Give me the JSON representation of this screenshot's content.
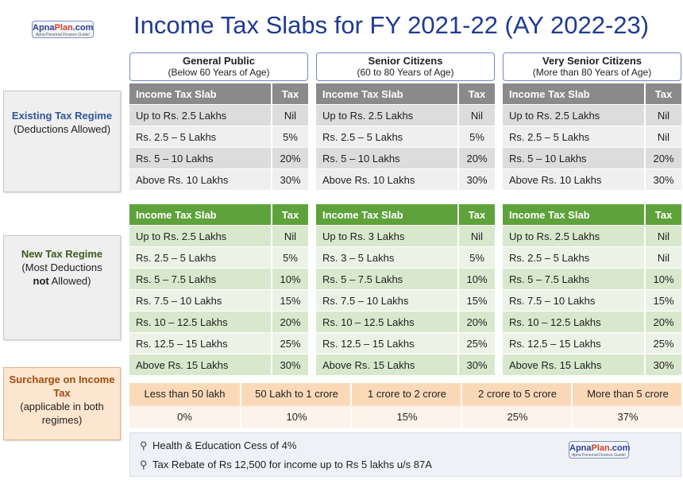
{
  "brand": {
    "name_prefix": "Apna",
    "name_highlight": "Plan",
    "name_suffix": ".com",
    "tagline": "Apna Personal Finance Guide!"
  },
  "title": "Income Tax Slabs for FY 2021-22 (AY 2022-23)",
  "groups": [
    {
      "name": "General Public",
      "sub": "(Below 60 Years of Age)"
    },
    {
      "name": "Senior Citizens",
      "sub": "(60 to 80 Years of Age)"
    },
    {
      "name": "Very Senior Citizens",
      "sub": "(More than 80 Years of Age)"
    }
  ],
  "col_slab": "Income Tax Slab",
  "col_tax": "Tax",
  "existing": {
    "label_bold": "Existing Tax Regime",
    "label_rest": "(Deductions Allowed)",
    "tables": [
      [
        [
          "Up to Rs. 2.5 Lakhs",
          "Nil"
        ],
        [
          "Rs. 2.5 – 5 Lakhs",
          "5%"
        ],
        [
          "Rs. 5 – 10 Lakhs",
          "20%"
        ],
        [
          "Above Rs. 10 Lakhs",
          "30%"
        ]
      ],
      [
        [
          "Up to Rs. 2.5 Lakhs",
          "Nil"
        ],
        [
          "Rs. 2.5 – 5 Lakhs",
          "5%"
        ],
        [
          "Rs. 5 – 10 Lakhs",
          "20%"
        ],
        [
          "Above Rs. 10 Lakhs",
          "30%"
        ]
      ],
      [
        [
          "Up to Rs. 2.5 Lakhs",
          "Nil"
        ],
        [
          "Rs. 2.5 – 5 Lakhs",
          "Nil"
        ],
        [
          "Rs. 5 – 10 Lakhs",
          "20%"
        ],
        [
          "Above Rs. 10 Lakhs",
          "30%"
        ]
      ]
    ]
  },
  "new_regime": {
    "label_bold": "New Tax Regime",
    "label_rest_1": "(Most Deductions",
    "label_not": "not",
    "label_rest_2": "Allowed)",
    "tables": [
      [
        [
          "Up to Rs. 2.5 Lakhs",
          "Nil"
        ],
        [
          "Rs. 2.5 – 5 Lakhs",
          "5%"
        ],
        [
          "Rs. 5 – 7.5 Lakhs",
          "10%"
        ],
        [
          "Rs. 7.5 – 10 Lakhs",
          "15%"
        ],
        [
          "Rs. 10 – 12.5 Lakhs",
          "20%"
        ],
        [
          "Rs. 12.5 – 15 Lakhs",
          "25%"
        ],
        [
          "Above Rs. 15 Lakhs",
          "30%"
        ]
      ],
      [
        [
          "Up to Rs. 3 Lakhs",
          "Nil"
        ],
        [
          "Rs. 3 – 5 Lakhs",
          "5%"
        ],
        [
          "Rs. 5 – 7.5 Lakhs",
          "10%"
        ],
        [
          "Rs. 7.5 – 10 Lakhs",
          "15%"
        ],
        [
          "Rs. 10 – 12.5 Lakhs",
          "20%"
        ],
        [
          "Rs. 12.5 – 15 Lakhs",
          "25%"
        ],
        [
          "Above Rs. 15 Lakhs",
          "30%"
        ]
      ],
      [
        [
          "Up to Rs. 2.5 Lakhs",
          "Nil"
        ],
        [
          "Rs. 2.5 – 5 Lakhs",
          "Nil"
        ],
        [
          "Rs. 5 – 7.5 Lakhs",
          "10%"
        ],
        [
          "Rs. 7.5 – 10 Lakhs",
          "15%"
        ],
        [
          "Rs. 10 – 12.5 Lakhs",
          "20%"
        ],
        [
          "Rs. 12.5 – 15 Lakhs",
          "25%"
        ],
        [
          "Above Rs. 15 Lakhs",
          "30%"
        ]
      ]
    ]
  },
  "surcharge": {
    "label_bold": "Surcharge on Income Tax",
    "label_rest": "(applicable in both regimes)",
    "brackets": [
      "Less than 50 lakh",
      "50 Lakh to 1 crore",
      "1 crore to 2 crore",
      "2 crore to 5 crore",
      "More than 5 crore"
    ],
    "rates": [
      "0%",
      "10%",
      "15%",
      "25%",
      "37%"
    ]
  },
  "notes": [
    "Health & Education Cess of 4%",
    "Tax Rebate of Rs 12,500 for income up to Rs 5 lakhs u/s 87A"
  ],
  "icons": {
    "bullet": "pin-icon"
  },
  "colors": {
    "title": "#1f3a93",
    "existing_header": "#8a8a8a",
    "new_header": "#5ea23b",
    "surcharge": "#fbd9b8"
  }
}
